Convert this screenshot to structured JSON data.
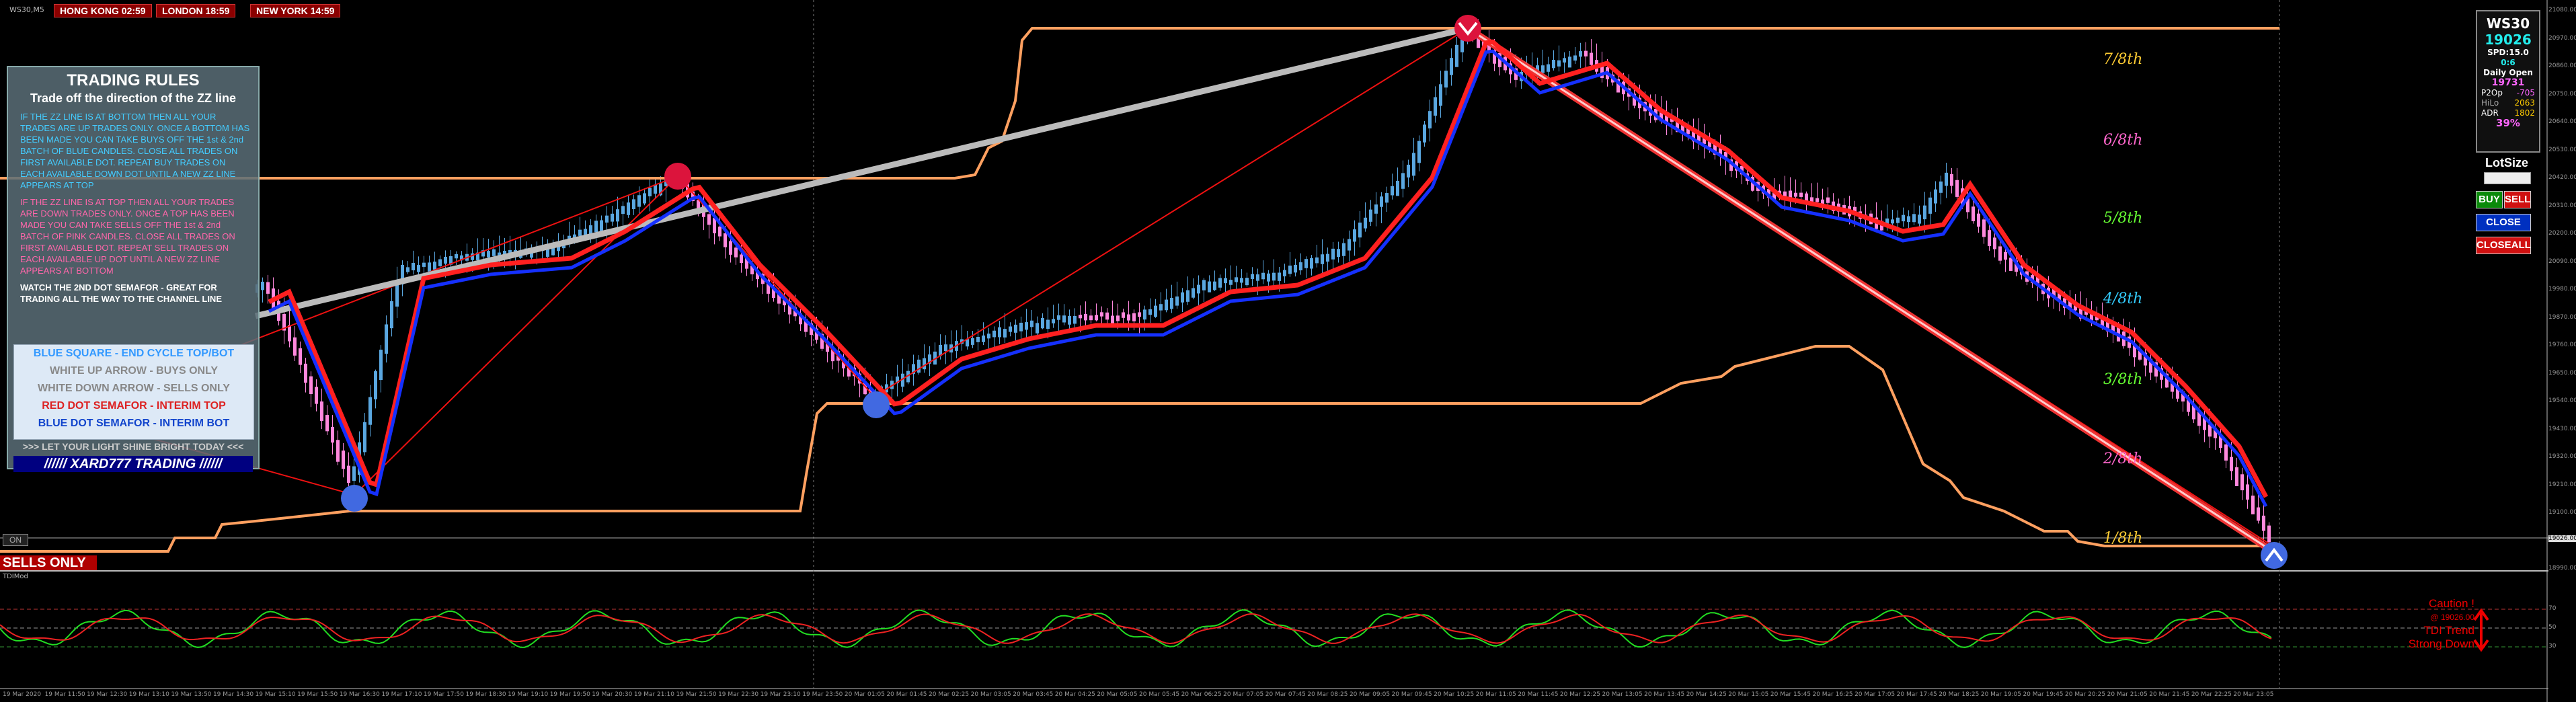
{
  "symbol_label": "WS30,M5",
  "clocks": [
    {
      "label": "HONG KONG 02:59"
    },
    {
      "label": "LONDON  18:59"
    },
    {
      "label": "NEW YORK  14:59"
    }
  ],
  "rules": {
    "title": "TRADING RULES",
    "subtitle": "Trade off the direction of the ZZ line",
    "bottom_block": "IF THE ZZ LINE IS AT BOTTOM THEN ALL YOUR TRADES ARE UP TRADES ONLY. ONCE A BOTTOM HAS BEEN MADE YOU CAN TAKE BUYS OFF THE 1st & 2nd BATCH OF BLUE CANDLES. CLOSE ALL TRADES ON FIRST AVAILABLE DOT. REPEAT BUY TRADES ON EACH AVAILABLE DOWN DOT UNTIL A NEW ZZ LINE APPEARS AT TOP",
    "top_block": "IF THE ZZ LINE IS AT TOP THEN ALL YOUR TRADES ARE DOWN TRADES ONLY. ONCE A TOP HAS BEEN MADE YOU CAN TAKE SELLS OFF THE 1st & 2nd BATCH OF PINK CANDLES. CLOSE ALL TRADES ON FIRST AVAILABLE DOT. REPEAT SELL TRADES ON EACH AVAILABLE UP DOT UNTIL A NEW ZZ LINE APPEARS AT BOTTOM",
    "watch_block": "WATCH THE 2ND DOT SEMAFOR - GREAT FOR TRADING ALL THE WAY TO THE CHANNEL LINE",
    "legend": [
      {
        "text": "BLUE SQUARE - END CYCLE TOP/BOT",
        "color": "#3399ff"
      },
      {
        "text": "WHITE UP ARROW - BUYS ONLY",
        "color": "#888888"
      },
      {
        "text": "WHITE DOWN ARROW - SELLS ONLY",
        "color": "#888888"
      },
      {
        "text": "RED DOT SEMAFOR - INTERIM TOP",
        "color": "#dd2222"
      },
      {
        "text": "BLUE DOT SEMAFOR - INTERIM BOT",
        "color": "#1144cc"
      }
    ],
    "shine": ">>> LET YOUR LIGHT SHINE BRIGHT TODAY <<<",
    "brand": "////// XARD777  TRADING //////"
  },
  "info_panel": {
    "symbol": "WS30",
    "price": "19026",
    "spd": "SPD:15.0",
    "ratio": "0:6",
    "daily_open_label": "Daily Open",
    "daily_open": "19731",
    "p2op_label": "P2Op",
    "p2op": "-705",
    "hilo_label": "HiLo",
    "hilo": "2063",
    "adr_label": "ADR",
    "adr": "1802",
    "adr_pct": "39%"
  },
  "trade_panel": {
    "lotsize_label": "LotSize",
    "buy": "BUY",
    "sell": "SELL",
    "close": "CLOSE",
    "closeall": "CLOSEALL"
  },
  "on_label": "ON",
  "sells_only": "SELLS ONLY",
  "indicator_label": "TDIMod",
  "caution": {
    "line1": "Caution !",
    "line2": "@ 19026.00",
    "line3": "TDI Trend",
    "line4": "Strong Down"
  },
  "murray_levels": [
    {
      "label": "7/8th",
      "color": "#ffcc33"
    },
    {
      "label": "6/8th",
      "color": "#ff66cc"
    },
    {
      "label": "5/8th",
      "color": "#66ff33"
    },
    {
      "label": "4/8th",
      "color": "#33ccff"
    },
    {
      "label": "3/8th",
      "color": "#66ff33"
    },
    {
      "label": "2/8th",
      "color": "#ff66cc"
    },
    {
      "label": "1/8th",
      "color": "#ffcc33"
    }
  ],
  "price_axis": [
    "21080.00",
    "20970.00",
    "20860.00",
    "20750.00",
    "20640.00",
    "20530.00",
    "20420.00",
    "20310.00",
    "20200.00",
    "20090.00",
    "19980.00",
    "19870.00",
    "19760.00",
    "19650.00",
    "19540.00",
    "19430.00",
    "19320.00",
    "19210.00",
    "19100.00",
    "19026.00",
    "18990.00"
  ],
  "ind_axis": [
    "70",
    "50",
    "30"
  ],
  "time_axis": [
    "19 Mar 2020",
    "19 Mar 11:50",
    "19 Mar 12:30",
    "19 Mar 13:10",
    "19 Mar 13:50",
    "19 Mar 14:30",
    "19 Mar 15:10",
    "19 Mar 15:50",
    "19 Mar 16:30",
    "19 Mar 17:10",
    "19 Mar 17:50",
    "19 Mar 18:30",
    "19 Mar 19:10",
    "19 Mar 19:50",
    "19 Mar 20:30",
    "19 Mar 21:10",
    "19 Mar 21:50",
    "19 Mar 22:30",
    "19 Mar 23:10",
    "19 Mar 23:50",
    "20 Mar 01:05",
    "20 Mar 01:45",
    "20 Mar 02:25",
    "20 Mar 03:05",
    "20 Mar 03:45",
    "20 Mar 04:25",
    "20 Mar 05:05",
    "20 Mar 05:45",
    "20 Mar 06:25",
    "20 Mar 07:05",
    "20 Mar 07:45",
    "20 Mar 08:25",
    "20 Mar 09:05",
    "20 Mar 09:45",
    "20 Mar 10:25",
    "20 Mar 11:05",
    "20 Mar 11:45",
    "20 Mar 12:25",
    "20 Mar 13:05",
    "20 Mar 13:45",
    "20 Mar 14:25",
    "20 Mar 15:05",
    "20 Mar 15:45",
    "20 Mar 16:25",
    "20 Mar 17:05",
    "20 Mar 17:45",
    "20 Mar 18:25",
    "20 Mar 19:05",
    "20 Mar 19:45",
    "20 Mar 20:25",
    "20 Mar 21:05",
    "20 Mar 21:45",
    "20 Mar 22:25",
    "20 Mar 23:05"
  ],
  "colors": {
    "bull": "#5aa7e0",
    "bear": "#ff88dd",
    "ma_red": "#ff2020",
    "ma_blue": "#1530ff",
    "channel": "#ffa060",
    "zz": "#cccccc"
  }
}
